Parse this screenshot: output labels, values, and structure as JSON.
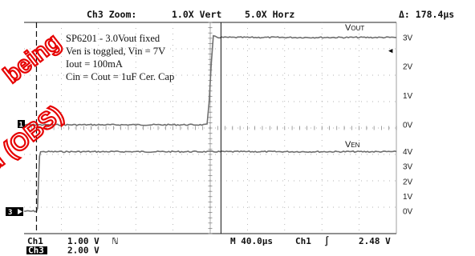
{
  "header": {
    "zoom": "Ch3 Zoom:",
    "vert": "1.0X Vert",
    "horz": "5.0X Horz",
    "delta": "Δ: 178.4μs"
  },
  "annotation_lines": [
    "SP6201 - 3.0Vout fixed",
    "Ven is toggled, Vin = 7V",
    "Iout = 100mA",
    "Cin = Cout = 1uF Cer. Cap"
  ],
  "footer": {
    "ch1": "Ch1",
    "ch1_scale": "1.00 V",
    "ch1_coupling": "ℕ",
    "ch3": "Ch3",
    "ch3_scale": "2.00 V",
    "timebase": "M 40.0μs",
    "trigger_src": "Ch1",
    "trigger_slope": "∫",
    "trigger_level": "2.48 V"
  },
  "markers": {
    "ch1_ground": "1",
    "ch3_ground": "3",
    "trigger_arrow": "◀"
  },
  "watermark": [
    "being",
    "ed (OBS)"
  ],
  "colors": {
    "trace": "#6f6f6f",
    "watermark": "#e60000",
    "marker_bg": "#000000"
  },
  "chart_data": {
    "type": "line",
    "xlabel": "",
    "ylabel": "",
    "x_unit": "μs",
    "x_range": [
      -180,
      180
    ],
    "grid": true,
    "panels": [
      {
        "id": "vout",
        "ticks": [
          "3V",
          "2V",
          "1V",
          "0V"
        ],
        "tick_values": [
          3,
          2,
          1,
          0
        ],
        "y_range": [
          -0.25,
          3.3
        ],
        "series": [
          {
            "name": "VOUT",
            "name_main": "V",
            "name_sub": "OUT",
            "points": [
              [
                -180,
                0
              ],
              [
                -75,
                0
              ],
              [
                -5,
                0
              ],
              [
                -3,
                0.03
              ],
              [
                -1,
                0.8
              ],
              [
                1,
                2.1
              ],
              [
                3,
                3.04
              ],
              [
                8,
                3.0
              ],
              [
                180,
                3.0
              ]
            ]
          }
        ]
      },
      {
        "id": "ven",
        "ticks": [
          "4V",
          "3V",
          "2V",
          "1V",
          "0V"
        ],
        "tick_values": [
          4,
          3,
          2,
          1,
          0
        ],
        "y_range": [
          -0.4,
          4.6
        ],
        "series": [
          {
            "name": "VEN",
            "name_main": "V",
            "name_sub": "EN",
            "points": [
              [
                -180,
                0
              ],
              [
                -168,
                0
              ],
              [
                -167,
                0.2
              ],
              [
                -166,
                2.0
              ],
              [
                -165,
                3.7
              ],
              [
                -164,
                4.0
              ],
              [
                180,
                4.0
              ]
            ]
          }
        ]
      }
    ],
    "cursors_us": [
      -168,
      10.4
    ],
    "delta_us": 178.4
  }
}
